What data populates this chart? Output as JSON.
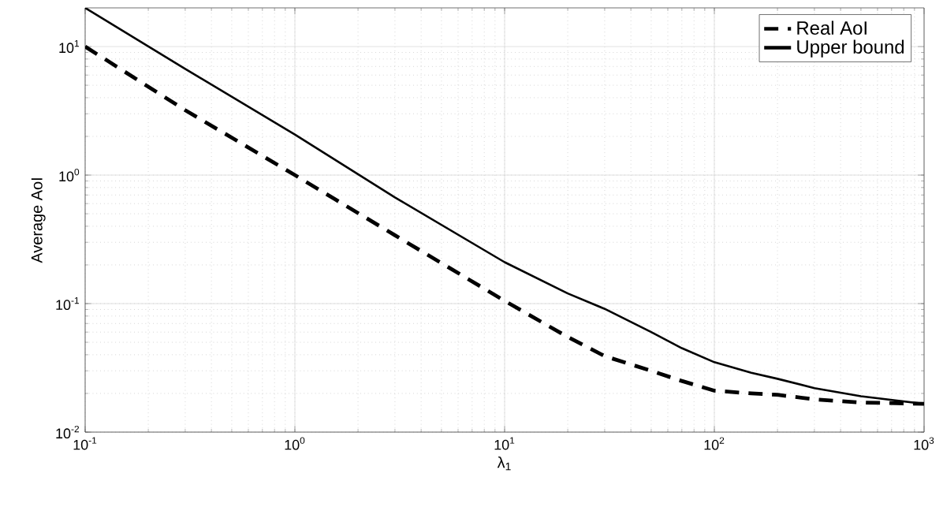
{
  "chart_data": {
    "type": "line",
    "xlabel": "λ$_{1}$",
    "ylabel": "Average AoI",
    "log": "xy",
    "grid": true,
    "legend": "top right",
    "x": [
      0.1,
      0.3,
      1,
      3,
      10,
      20,
      30,
      50,
      70,
      100,
      150,
      200,
      300,
      500,
      1000
    ],
    "xlim": [
      0.1,
      1000
    ],
    "xticks": [
      {
        "value": 0.1,
        "label": "10$^{-1}$"
      },
      {
        "value": 1,
        "label": "10$^{0}$"
      },
      {
        "value": 10,
        "label": "10$^{1}$"
      },
      {
        "value": 100,
        "label": "10$^{2}$"
      },
      {
        "value": 1000,
        "label": "10$^{3}$"
      }
    ],
    "ylim": [
      0.01,
      20
    ],
    "yticks": [
      {
        "value": 0.01,
        "label": "10$^{-2}$"
      },
      {
        "value": 0.1,
        "label": "10$^{-1}$"
      },
      {
        "value": 1,
        "label": "10$^{0}$"
      },
      {
        "value": 10,
        "label": "10$^{1}$"
      }
    ],
    "series": [
      {
        "name": "Real AoI",
        "color": "#000000",
        "line_style": "dashed",
        "values": [
          10,
          3.2,
          1.0,
          0.34,
          0.105,
          0.055,
          0.039,
          0.03,
          0.025,
          0.021,
          0.02,
          0.0195,
          0.018,
          0.017,
          0.0166
        ]
      },
      {
        "name": "Upper bound",
        "color": "#000000",
        "line_style": "solid",
        "values": [
          20,
          6.7,
          2.07,
          0.67,
          0.21,
          0.12,
          0.091,
          0.06,
          0.045,
          0.035,
          0.029,
          0.026,
          0.022,
          0.019,
          0.0166
        ]
      }
    ]
  }
}
